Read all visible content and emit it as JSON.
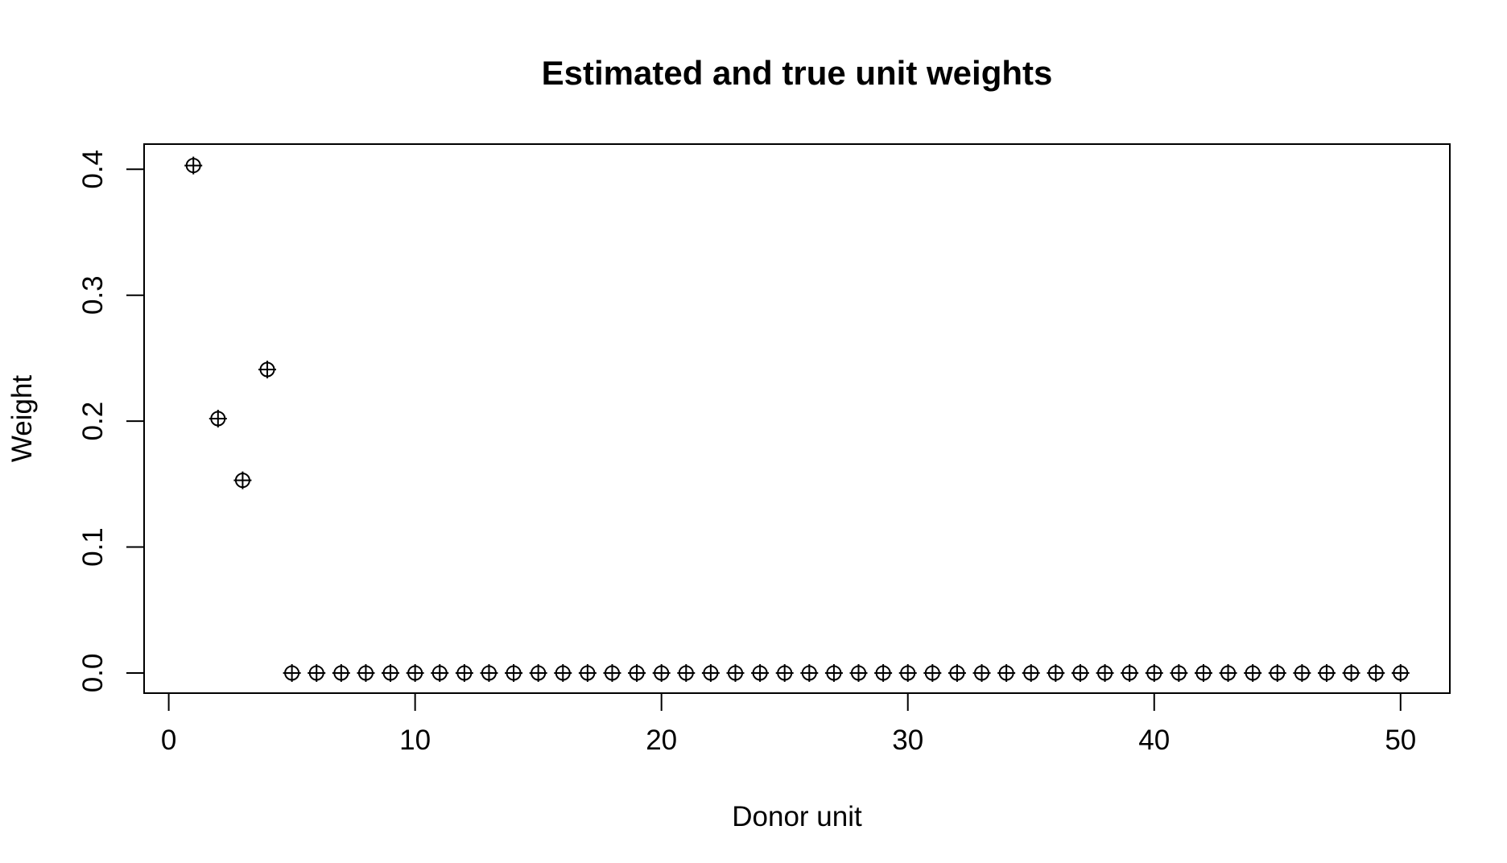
{
  "chart_data": {
    "type": "scatter",
    "title": "Estimated and true unit weights",
    "xlabel": "Donor unit",
    "ylabel": "Weight",
    "xlim": [
      -1,
      52
    ],
    "ylim": [
      -0.016,
      0.42
    ],
    "x_ticks": [
      0,
      10,
      20,
      30,
      40,
      50
    ],
    "x_tick_labels": [
      "0",
      "10",
      "20",
      "30",
      "40",
      "50"
    ],
    "y_ticks": [
      0.0,
      0.1,
      0.2,
      0.3,
      0.4
    ],
    "y_tick_labels": [
      "0.0",
      "0.1",
      "0.2",
      "0.3",
      "0.4"
    ],
    "grid": false,
    "legend": "none",
    "marker_color": "#000000",
    "series": [
      {
        "marker": "circle",
        "x": [
          1,
          2,
          3,
          4,
          5,
          6,
          7,
          8,
          9,
          10,
          11,
          12,
          13,
          14,
          15,
          16,
          17,
          18,
          19,
          20,
          21,
          22,
          23,
          24,
          25,
          26,
          27,
          28,
          29,
          30,
          31,
          32,
          33,
          34,
          35,
          36,
          37,
          38,
          39,
          40,
          41,
          42,
          43,
          44,
          45,
          46,
          47,
          48,
          49,
          50
        ],
        "y": [
          0.403,
          0.202,
          0.153,
          0.241,
          0,
          0,
          0,
          0,
          0,
          0,
          0,
          0,
          0,
          0,
          0,
          0,
          0,
          0,
          0,
          0,
          0,
          0,
          0,
          0,
          0,
          0,
          0,
          0,
          0,
          0,
          0,
          0,
          0,
          0,
          0,
          0,
          0,
          0,
          0,
          0,
          0,
          0,
          0,
          0,
          0,
          0,
          0,
          0,
          0,
          0
        ]
      },
      {
        "marker": "plus",
        "x": [
          1,
          2,
          3,
          4,
          5,
          6,
          7,
          8,
          9,
          10,
          11,
          12,
          13,
          14,
          15,
          16,
          17,
          18,
          19,
          20,
          21,
          22,
          23,
          24,
          25,
          26,
          27,
          28,
          29,
          30,
          31,
          32,
          33,
          34,
          35,
          36,
          37,
          38,
          39,
          40,
          41,
          42,
          43,
          44,
          45,
          46,
          47,
          48,
          49,
          50
        ],
        "y": [
          0.403,
          0.202,
          0.153,
          0.241,
          0,
          0,
          0,
          0,
          0,
          0,
          0,
          0,
          0,
          0,
          0,
          0,
          0,
          0,
          0,
          0,
          0,
          0,
          0,
          0,
          0,
          0,
          0,
          0,
          0,
          0,
          0,
          0,
          0,
          0,
          0,
          0,
          0,
          0,
          0,
          0,
          0,
          0,
          0,
          0,
          0,
          0,
          0,
          0,
          0,
          0
        ]
      }
    ]
  }
}
